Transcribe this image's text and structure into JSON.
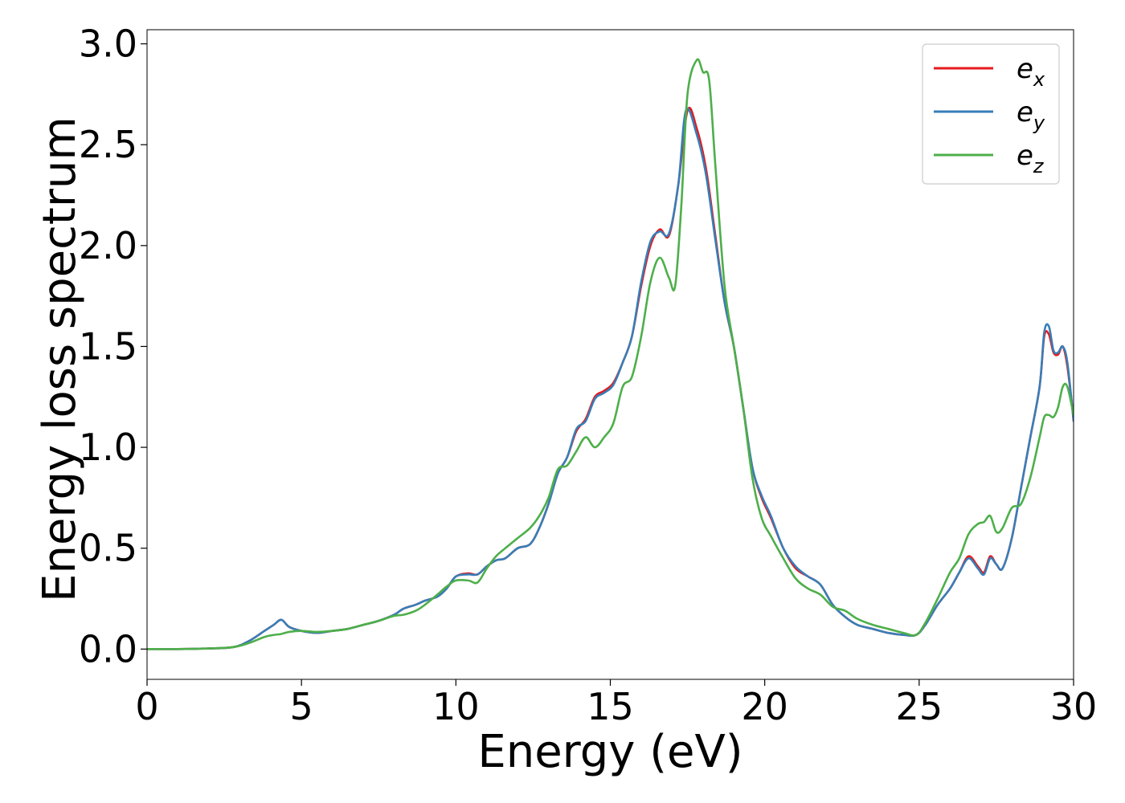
{
  "chart_data": {
    "type": "line",
    "xlabel": "Energy (eV)",
    "ylabel": "Energy loss spectrum",
    "xlim": [
      0,
      30
    ],
    "ylim": [
      -0.15,
      3.07
    ],
    "xticks": [
      0,
      5,
      10,
      15,
      20,
      25,
      30
    ],
    "xtick_labels": [
      "0",
      "5",
      "10",
      "15",
      "20",
      "25",
      "30"
    ],
    "yticks": [
      0.0,
      0.5,
      1.0,
      1.5,
      2.0,
      2.5,
      3.0
    ],
    "ytick_labels": [
      "0.0",
      "0.5",
      "1.0",
      "1.5",
      "2.0",
      "2.5",
      "3.0"
    ],
    "grid": false,
    "legend_position": "top-right",
    "series": [
      {
        "name": "e",
        "subscript": "x",
        "color": "#e41a1c",
        "x": [
          0,
          1,
          2,
          2.8,
          3.3,
          3.8,
          4.1,
          4.35,
          4.6,
          5.0,
          5.5,
          6.0,
          6.5,
          7.0,
          7.5,
          8.0,
          8.3,
          8.7,
          9.0,
          9.4,
          9.7,
          10.0,
          10.4,
          10.7,
          11.0,
          11.3,
          11.6,
          12.0,
          12.4,
          12.7,
          13.0,
          13.3,
          13.6,
          13.9,
          14.2,
          14.5,
          14.8,
          15.1,
          15.4,
          15.7,
          16.0,
          16.3,
          16.6,
          16.9,
          17.2,
          17.5,
          17.8,
          18.1,
          18.4,
          18.7,
          19.0,
          19.3,
          19.6,
          19.9,
          20.2,
          20.6,
          21.0,
          21.4,
          21.8,
          22.2,
          22.6,
          23.0,
          23.5,
          24.0,
          24.5,
          24.9,
          25.2,
          25.6,
          26.0,
          26.3,
          26.6,
          26.9,
          27.1,
          27.3,
          27.5,
          27.7,
          28.0,
          28.3,
          28.6,
          28.9,
          29.05,
          29.2,
          29.35,
          29.5,
          29.65,
          29.8,
          30.0
        ],
        "y": [
          0.0,
          0.0,
          0.003,
          0.01,
          0.04,
          0.09,
          0.12,
          0.145,
          0.11,
          0.09,
          0.08,
          0.09,
          0.1,
          0.12,
          0.14,
          0.17,
          0.2,
          0.22,
          0.24,
          0.26,
          0.3,
          0.36,
          0.375,
          0.37,
          0.41,
          0.44,
          0.45,
          0.5,
          0.52,
          0.6,
          0.72,
          0.87,
          0.95,
          1.08,
          1.14,
          1.25,
          1.28,
          1.32,
          1.42,
          1.55,
          1.8,
          2.0,
          2.08,
          2.05,
          2.3,
          2.67,
          2.58,
          2.38,
          2.05,
          1.72,
          1.5,
          1.2,
          0.9,
          0.75,
          0.65,
          0.5,
          0.4,
          0.36,
          0.32,
          0.22,
          0.16,
          0.12,
          0.1,
          0.08,
          0.07,
          0.07,
          0.12,
          0.22,
          0.3,
          0.38,
          0.46,
          0.41,
          0.38,
          0.46,
          0.42,
          0.4,
          0.55,
          0.8,
          1.05,
          1.3,
          1.55,
          1.56,
          1.47,
          1.46,
          1.5,
          1.4,
          1.14
        ]
      },
      {
        "name": "e",
        "subscript": "y",
        "color": "#377eb8",
        "x": [
          0,
          1,
          2,
          2.8,
          3.3,
          3.8,
          4.1,
          4.35,
          4.6,
          5.0,
          5.5,
          6.0,
          6.5,
          7.0,
          7.5,
          8.0,
          8.3,
          8.7,
          9.0,
          9.4,
          9.7,
          10.0,
          10.4,
          10.7,
          11.0,
          11.3,
          11.6,
          12.0,
          12.4,
          12.7,
          13.0,
          13.3,
          13.6,
          13.9,
          14.2,
          14.5,
          14.8,
          15.1,
          15.4,
          15.7,
          16.0,
          16.3,
          16.6,
          16.9,
          17.2,
          17.45,
          17.8,
          18.1,
          18.4,
          18.7,
          19.0,
          19.3,
          19.6,
          19.9,
          20.2,
          20.6,
          21.0,
          21.4,
          21.8,
          22.2,
          22.6,
          23.0,
          23.5,
          24.0,
          24.5,
          24.9,
          25.2,
          25.6,
          26.0,
          26.3,
          26.6,
          26.9,
          27.1,
          27.3,
          27.5,
          27.7,
          28.0,
          28.3,
          28.6,
          28.9,
          29.05,
          29.2,
          29.35,
          29.5,
          29.65,
          29.8,
          30.0
        ],
        "y": [
          0.0,
          0.0,
          0.003,
          0.01,
          0.04,
          0.09,
          0.12,
          0.145,
          0.11,
          0.09,
          0.08,
          0.09,
          0.1,
          0.12,
          0.14,
          0.17,
          0.2,
          0.22,
          0.24,
          0.26,
          0.3,
          0.36,
          0.37,
          0.37,
          0.41,
          0.44,
          0.45,
          0.5,
          0.52,
          0.6,
          0.72,
          0.87,
          0.95,
          1.09,
          1.13,
          1.24,
          1.27,
          1.31,
          1.42,
          1.55,
          1.82,
          2.02,
          2.07,
          2.06,
          2.3,
          2.67,
          2.55,
          2.35,
          2.03,
          1.72,
          1.5,
          1.2,
          0.9,
          0.76,
          0.66,
          0.5,
          0.41,
          0.36,
          0.32,
          0.22,
          0.16,
          0.12,
          0.1,
          0.08,
          0.07,
          0.07,
          0.12,
          0.22,
          0.3,
          0.38,
          0.45,
          0.4,
          0.37,
          0.45,
          0.42,
          0.4,
          0.55,
          0.8,
          1.05,
          1.3,
          1.57,
          1.6,
          1.48,
          1.47,
          1.5,
          1.42,
          1.13
        ]
      },
      {
        "name": "e",
        "subscript": "z",
        "color": "#4daf4a",
        "x": [
          0,
          1,
          2,
          2.8,
          3.3,
          3.8,
          4.1,
          4.35,
          4.6,
          5.0,
          5.5,
          6.0,
          6.5,
          7.0,
          7.5,
          8.0,
          8.3,
          8.7,
          9.0,
          9.4,
          9.7,
          10.0,
          10.4,
          10.7,
          11.0,
          11.3,
          11.6,
          12.0,
          12.4,
          12.7,
          13.0,
          13.3,
          13.6,
          13.9,
          14.2,
          14.5,
          14.8,
          15.1,
          15.4,
          15.7,
          16.0,
          16.3,
          16.6,
          16.9,
          17.1,
          17.3,
          17.5,
          17.8,
          18.0,
          18.2,
          18.4,
          18.7,
          19.0,
          19.3,
          19.6,
          19.9,
          20.2,
          20.6,
          21.0,
          21.4,
          21.8,
          22.2,
          22.6,
          23.0,
          23.5,
          24.0,
          24.5,
          24.9,
          25.2,
          25.6,
          26.0,
          26.3,
          26.6,
          26.9,
          27.1,
          27.3,
          27.5,
          27.7,
          28.0,
          28.3,
          28.6,
          28.9,
          29.05,
          29.2,
          29.35,
          29.5,
          29.65,
          29.8,
          30.0
        ],
        "y": [
          0.0,
          0.0,
          0.003,
          0.01,
          0.03,
          0.06,
          0.07,
          0.075,
          0.085,
          0.09,
          0.085,
          0.09,
          0.1,
          0.12,
          0.14,
          0.165,
          0.17,
          0.19,
          0.22,
          0.27,
          0.31,
          0.34,
          0.34,
          0.33,
          0.4,
          0.46,
          0.5,
          0.55,
          0.6,
          0.66,
          0.75,
          0.89,
          0.91,
          0.98,
          1.05,
          1.0,
          1.05,
          1.12,
          1.3,
          1.35,
          1.55,
          1.82,
          1.94,
          1.84,
          1.8,
          2.2,
          2.75,
          2.92,
          2.86,
          2.82,
          2.4,
          1.8,
          1.5,
          1.2,
          0.85,
          0.65,
          0.56,
          0.45,
          0.35,
          0.3,
          0.27,
          0.21,
          0.19,
          0.15,
          0.12,
          0.1,
          0.08,
          0.07,
          0.13,
          0.25,
          0.38,
          0.45,
          0.57,
          0.62,
          0.63,
          0.66,
          0.58,
          0.6,
          0.7,
          0.72,
          0.85,
          1.05,
          1.15,
          1.16,
          1.15,
          1.2,
          1.3,
          1.3,
          1.16
        ]
      }
    ]
  }
}
